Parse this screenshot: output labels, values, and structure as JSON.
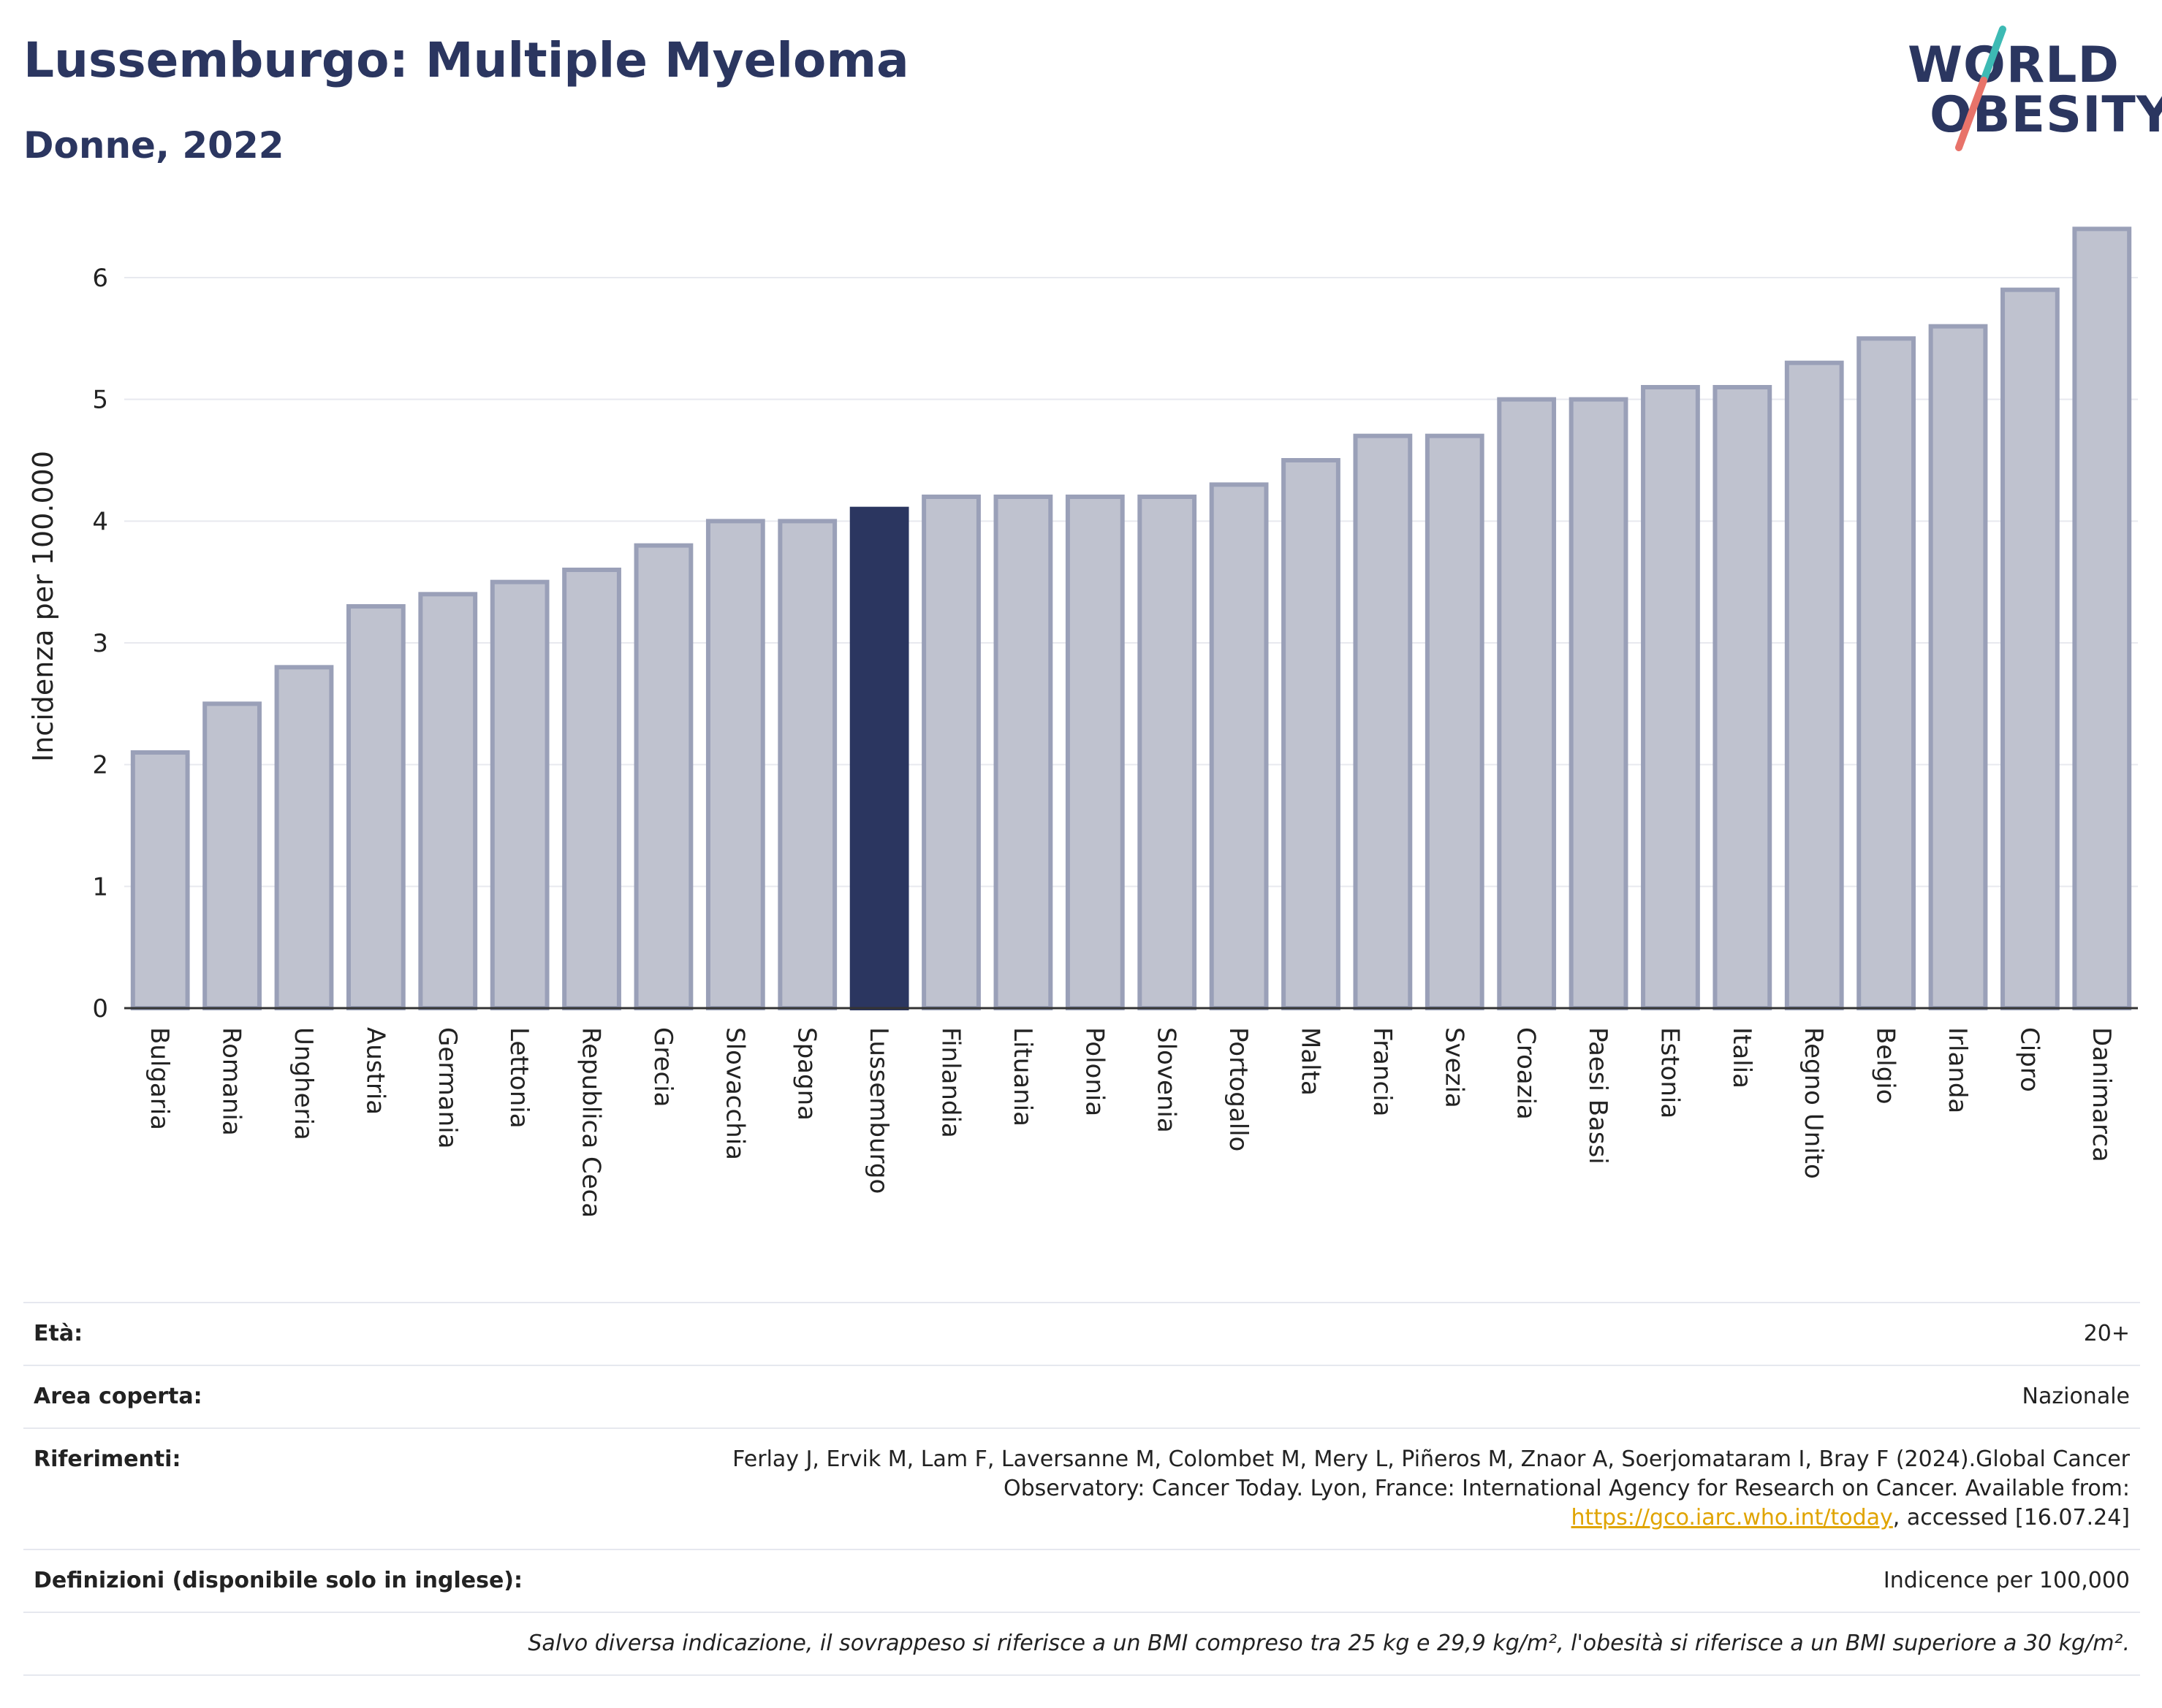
{
  "title": "Lussemburgo: Multiple Myeloma",
  "subtitle": "Donne, 2022",
  "logo": {
    "line1": "WORLD",
    "line2": "OBESITY"
  },
  "colors": {
    "highlight": "#2b3660",
    "bar_fill": "#bfc2cf",
    "bar_stroke": "#9aa0b8",
    "grid": "#e8e9ef",
    "logo_teal": "#3dbab4",
    "logo_coral": "#e8736a"
  },
  "chart_data": {
    "type": "bar",
    "categories": [
      "Bulgaria",
      "Romania",
      "Ungheria",
      "Austria",
      "Germania",
      "Lettonia",
      "Republica Ceca",
      "Grecia",
      "Slovacchia",
      "Spagna",
      "Lussemburgo",
      "Finlandia",
      "Lituania",
      "Polonia",
      "Slovenia",
      "Portogallo",
      "Malta",
      "Francia",
      "Svezia",
      "Croazia",
      "Paesi Bassi",
      "Estonia",
      "Italia",
      "Regno Unito",
      "Belgio",
      "Irlanda",
      "Cipro",
      "Danimarca"
    ],
    "values": [
      2.1,
      2.5,
      2.8,
      3.3,
      3.4,
      3.5,
      3.6,
      3.8,
      4.0,
      4.0,
      4.1,
      4.2,
      4.2,
      4.2,
      4.2,
      4.3,
      4.5,
      4.7,
      4.7,
      5.0,
      5.0,
      5.1,
      5.1,
      5.3,
      5.5,
      5.6,
      5.9,
      6.4
    ],
    "highlight": "Lussemburgo",
    "ylabel": "Incidenza per 100.000",
    "ylim": [
      0,
      6.6
    ],
    "yticks": [
      0,
      1,
      2,
      3,
      4,
      5,
      6
    ],
    "grid": true
  },
  "info": {
    "age": {
      "label": "Età:",
      "value": "20+"
    },
    "area": {
      "label": "Area coperta:",
      "value": "Nazionale"
    },
    "refs": {
      "label": "Riferimenti:",
      "text1": "Ferlay J, Ervik M, Lam F, Laversanne M, Colombet M, Mery L, Piñeros M, Znaor A, Soerjomataram I, Bray F (2024).Global Cancer Observatory: Cancer Today. Lyon, France: International Agency for Research on Cancer. Available from: ",
      "link": "https://gco.iarc.who.int/today",
      "text2": ", accessed [16.07.24]"
    },
    "defs": {
      "label": "Definizioni (disponibile solo in inglese):",
      "value": "Indicence per 100,000"
    },
    "note": "Salvo diversa indicazione, il sovrappeso si riferisce a un BMI compreso tra 25 kg e 29,9 kg/m², l'obesità si riferisce a un BMI superiore a 30 kg/m²."
  }
}
